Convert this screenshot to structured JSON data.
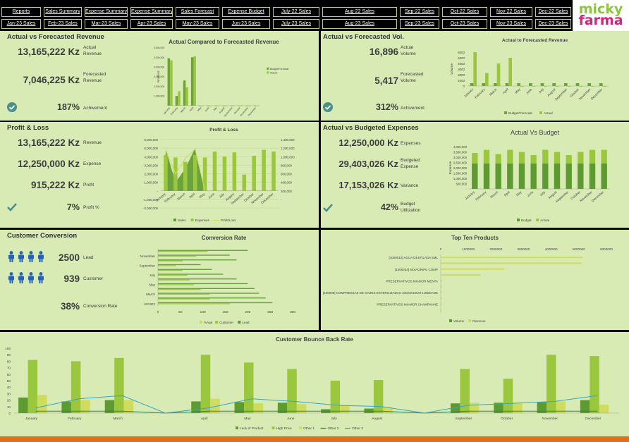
{
  "nav": {
    "row1": [
      "Reports",
      "Sales Summary",
      "Expense Summary",
      "Expense Summary",
      "Sales Forecast",
      "Expense Budget",
      "July-22 Sales",
      "Aug-22 Sales",
      "Sep-22 Sales",
      "Oct-22 Sales",
      "Nov-22 Sales",
      "Dec-22 Sales"
    ],
    "row2": [
      "Jan-23 Sales",
      "Feb-23 Sales",
      "Mar-23 Sales",
      "Apr-23 Sales",
      "May-23 Sales",
      "Jun-23 Sales",
      "July-23 Sales",
      "Aug-23 Sales",
      "Sep-23 Sales",
      "Oct-23 Sales",
      "Nov-23 Sales",
      "Dec-23 Sales"
    ]
  },
  "logo": {
    "line1": "micky",
    "line2": "farma"
  },
  "colors": {
    "panel": "#d8ebb4",
    "dark_green": "#70a23a",
    "light_green": "#9bc73f",
    "yellow_green": "#cfdc5e",
    "teal_line": "#35a7c4",
    "orange": "#e06f1e",
    "person_icon": "#2461b8"
  },
  "revenue": {
    "title": "Actual vs Forecasted Revenue",
    "actual_value": "13,165,222 Kz",
    "actual_label": "Actual Revenue",
    "forecast_value": "7,046,225 Kz",
    "forecast_label": "Forecasted Revenue",
    "achieve_value": "187%",
    "achieve_label": "Achivement",
    "achieve_icon": "check-circle-icon"
  },
  "volume": {
    "title": "Actual vs Forecasted Vol.",
    "actual_value": "16,896",
    "actual_label": "Actual Volume",
    "forecast_value": "5,417",
    "forecast_label": "Forecasted Volume",
    "achieve_value": "312%",
    "achieve_label": "Achivement",
    "achieve_icon": "check-circle-icon"
  },
  "pl": {
    "title": "Profit & Loss",
    "revenue_value": "13,165,222 Kz",
    "revenue_label": "Revenue",
    "expense_value": "12,250,000 Kz",
    "expense_label": "Expense",
    "profit_value": "915,222 Kz",
    "profit_label": "Profit",
    "pct_value": "7%",
    "pct_label": "Profit %",
    "icon": "check-mark-icon"
  },
  "expenses": {
    "title": "Actual vs Budgeted Expenses",
    "expense_value": "12,250,000 Kz",
    "expense_label": "Expenses",
    "budget_value": "29,403,026 Kz",
    "budget_label": "Budgeted Expense",
    "variance_value": "17,153,026 Kz",
    "variance_label": "Variance",
    "util_value": "42%",
    "util_label": "Budget Utilization",
    "icon": "check-mark-icon"
  },
  "conversion": {
    "title": "Customer Conversion",
    "lead_value": "2500",
    "lead_label": "Lead",
    "customer_value": "939",
    "customer_label": "Customer",
    "rate_value": "38%",
    "rate_label": "Conversion Rate",
    "icon": "person-icon"
  },
  "chart_data": [
    {
      "id": "revenue_chart",
      "type": "bar",
      "title": "Actual Compared to Forecasted Revenue",
      "ylabel": "REVENUE",
      "ylim": [
        0,
        6000000
      ],
      "yticks": [
        "-",
        "1,000,000",
        "2,000,000",
        "3,000,000",
        "4,000,000",
        "5,000,000",
        "6,000,000"
      ],
      "categories": [
        "January",
        "February",
        "March",
        "April",
        "May",
        "June",
        "July",
        "August",
        "September",
        "October",
        "November",
        "December"
      ],
      "series": [
        {
          "name": "Budget/Forecast",
          "values": [
            4900000,
            1000000,
            2600000,
            5000000,
            0,
            0,
            0,
            0,
            0,
            0,
            0,
            0
          ]
        },
        {
          "name": "Actual",
          "values": [
            4700000,
            1500000,
            1900000,
            5100000,
            0,
            0,
            0,
            0,
            0,
            0,
            0,
            0
          ]
        }
      ],
      "legend": "right"
    },
    {
      "id": "volume_chart",
      "type": "bar",
      "title": "Actual to Forecasted Revenue",
      "ylabel": "Volume",
      "ylim": [
        0,
        6000
      ],
      "yticks": [
        "0",
        "1000",
        "2000",
        "3000",
        "4000",
        "5000",
        "6000"
      ],
      "categories": [
        "January",
        "February",
        "March",
        "April",
        "May",
        "June",
        "July",
        "August",
        "September",
        "October",
        "November",
        "December"
      ],
      "series": [
        {
          "name": "Budget/Forecast",
          "values": [
            500,
            500,
            500,
            500,
            500,
            500,
            500,
            500,
            500,
            500,
            500,
            500
          ]
        },
        {
          "name": "Actual",
          "values": [
            6000,
            2300,
            4000,
            5000,
            0,
            0,
            0,
            0,
            0,
            0,
            0,
            0
          ]
        }
      ],
      "legend": "bottom"
    },
    {
      "id": "pl_chart",
      "type": "bar",
      "title": "Profit & Loss",
      "ylim": [
        -2000000,
        6000000
      ],
      "y2lim": [
        0,
        1400000
      ],
      "yticks": [
        "-2,000,000",
        "-1,000,000",
        "-",
        "1,000,000",
        "2,000,000",
        "3,000,000",
        "4,000,000",
        "5,000,000",
        "6,000,000"
      ],
      "y2ticks": [
        "-",
        "200,000",
        "400,000",
        "600,000",
        "800,000",
        "1,000,000",
        "1,200,000",
        "1,400,000"
      ],
      "categories": [
        "January",
        "February",
        "March",
        "April",
        "May",
        "June",
        "July",
        "August",
        "September",
        "October",
        "November",
        "December"
      ],
      "series": [
        {
          "name": "Sales",
          "type": "area",
          "values": [
            4900000,
            1000000,
            2600000,
            5000000,
            0,
            0,
            0,
            0,
            0,
            0,
            0,
            0
          ]
        },
        {
          "name": "Expenses",
          "type": "bar",
          "values": [
            4200000,
            3900000,
            3400000,
            4200000,
            3900000,
            4600000,
            4000000,
            4500000,
            1900000,
            4100000,
            4800000,
            4600000
          ]
        },
        {
          "name": "Profit/Loss",
          "type": "line",
          "values": [
            4800000,
            2000000,
            3800000,
            4900000,
            0,
            0,
            0,
            0,
            0,
            0,
            0,
            0
          ]
        }
      ],
      "legend": "bottom"
    },
    {
      "id": "budget_chart",
      "type": "bar",
      "title": "Actual Vs Budget",
      "ylabel": "Expense",
      "ylim": [
        0,
        4000000
      ],
      "yticks": [
        "-",
        "500,000",
        "1,000,000",
        "1,500,000",
        "2,000,000",
        "2,500,000",
        "3,000,000",
        "3,500,000",
        "4,000,000"
      ],
      "categories": [
        "January",
        "February",
        "March",
        "April",
        "May",
        "June",
        "July",
        "August",
        "September",
        "October",
        "November",
        "December"
      ],
      "series": [
        {
          "name": "Budget",
          "values": [
            2400000,
            2400000,
            2400000,
            2400000,
            2400000,
            2400000,
            2400000,
            2400000,
            2400000,
            2400000,
            2400000,
            2400000
          ]
        },
        {
          "name": "Actual",
          "values": [
            3400000,
            3700000,
            3300000,
            3700000,
            3500000,
            3200000,
            3700000,
            3500000,
            3200000,
            3500000,
            3700000,
            3700000
          ]
        }
      ],
      "legend": "bottom"
    },
    {
      "id": "conversion_chart",
      "type": "bar",
      "orientation": "horizontal",
      "title": "Conversion Rate",
      "xlim": [
        0,
        300
      ],
      "xticks": [
        "0",
        "50",
        "100",
        "150",
        "200",
        "250",
        "300"
      ],
      "categories": [
        "January",
        "February",
        "March",
        "April",
        "May",
        "June",
        "July",
        "August",
        "September",
        "October",
        "November",
        "December"
      ],
      "category_labels": [
        "January",
        "",
        "March",
        "",
        "May",
        "",
        "July",
        "",
        "September",
        "",
        "November",
        ""
      ],
      "series": [
        {
          "name": "%Age",
          "values": [
            0,
            0,
            0,
            0,
            0,
            0,
            0,
            0,
            0,
            0,
            0,
            0
          ]
        },
        {
          "name": "Customer",
          "values": [
            160,
            115,
            115,
            95,
            80,
            70,
            65,
            55,
            40,
            55,
            85,
            110
          ]
        },
        {
          "name": "Lead",
          "values": [
            255,
            240,
            225,
            215,
            200,
            175,
            145,
            120,
            95,
            175,
            160,
            200
          ]
        }
      ],
      "legend": "bottom"
    },
    {
      "id": "products_chart",
      "type": "bar",
      "orientation": "horizontal",
      "title": "Top Ten Products",
      "xlim": [
        0,
        6000000
      ],
      "xticks": [
        "0",
        "1000000",
        "2000000",
        "3000000",
        "4000000",
        "5000000",
        "6000000"
      ],
      "categories": [
        "[1000010] AGUA DESTILADA 5ML",
        "",
        "[1000034] MIXAGRIPE COMP",
        "",
        "PRESERVATIVOS MIAMOR MENTA",
        "",
        "[100005] COMPRESSAS DE GAZES ESTERILIZADAS 10CMX10CM 1UNIDADE",
        "",
        "PRESERVATIVOS MIAMOR CHAMPANHE",
        ""
      ],
      "series": [
        {
          "name": "Volume",
          "values": [
            3000,
            3000,
            3000,
            3000,
            3000,
            3000,
            3000,
            3000,
            3000,
            3000
          ]
        },
        {
          "name": "Revenue",
          "values": [
            5150000,
            5100000,
            2300000,
            1450000,
            45000,
            45000,
            40000,
            40000,
            35000,
            30000
          ]
        }
      ],
      "legend": "bottom"
    },
    {
      "id": "bounce_chart",
      "type": "bar",
      "title": "Customer Bounce Back Rate",
      "ylim": [
        0,
        100
      ],
      "yticks": [
        "0",
        "10",
        "20",
        "30",
        "40",
        "50",
        "60",
        "70",
        "80",
        "90",
        "100"
      ],
      "categories": [
        "January",
        "February",
        "March",
        "April",
        "May",
        "June",
        "July",
        "August",
        "September",
        "October",
        "November",
        "December"
      ],
      "series": [
        {
          "name": "Lack of Product",
          "type": "bar",
          "values": [
            24,
            18,
            20,
            18,
            17,
            16,
            6,
            7,
            15,
            16,
            17,
            20
          ]
        },
        {
          "name": "High Price",
          "type": "bar",
          "values": [
            82,
            80,
            85,
            90,
            78,
            68,
            50,
            51,
            68,
            53,
            90,
            88
          ]
        },
        {
          "name": "Other 1",
          "type": "bar",
          "values": [
            28,
            20,
            20,
            22,
            15,
            14,
            12,
            9,
            16,
            16,
            18,
            13
          ]
        },
        {
          "name": "Other 2",
          "type": "line",
          "values": [
            3,
            3,
            3,
            3,
            3,
            3,
            3,
            3,
            3,
            3,
            3,
            3
          ]
        },
        {
          "name": "Other 3",
          "type": "line",
          "values": [
            8,
            22,
            27,
            8,
            22,
            18,
            12,
            10,
            12,
            15,
            18,
            27
          ]
        }
      ],
      "legend": "bottom"
    }
  ]
}
